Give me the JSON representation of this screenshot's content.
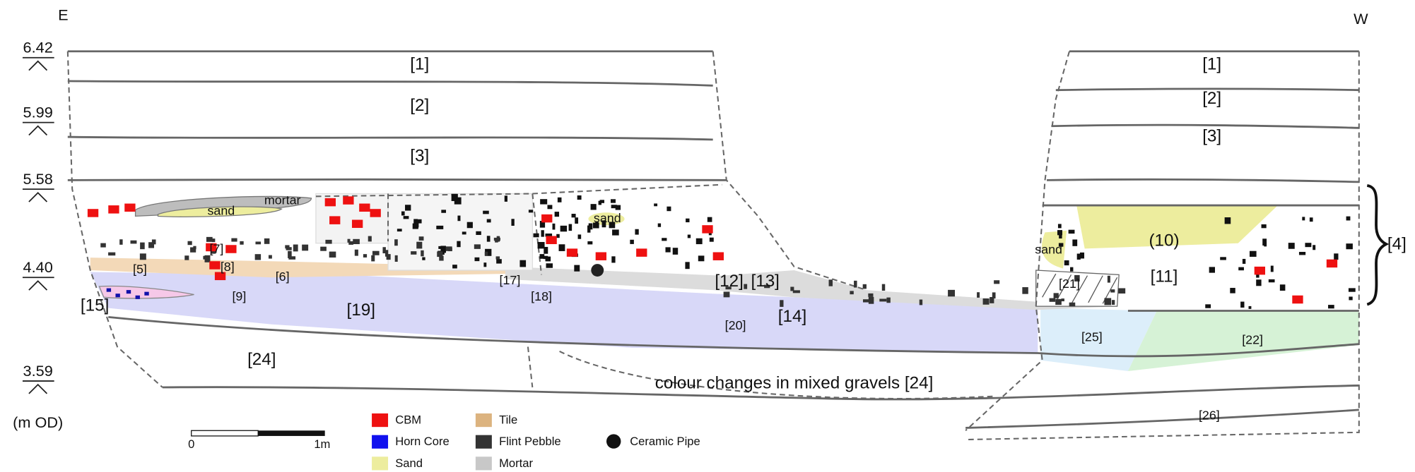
{
  "orientation": {
    "left": "E",
    "right": "W"
  },
  "levels": [
    "6.42",
    "5.99",
    "5.58",
    "4.40",
    "3.59"
  ],
  "unit": "(m OD)",
  "contexts": [
    "[1]",
    "[2]",
    "[3]",
    "[1]",
    "[2]",
    "[3]",
    "[4]",
    "(10)",
    "[11]",
    "[5]",
    "[7]",
    "[8]",
    "[9]",
    "[6]",
    "[15]",
    "[19]",
    "[17]",
    "[18]",
    "[12]",
    "[13]",
    "[14]",
    "[20]",
    "[21]",
    "[25]",
    "[22]",
    "[24]",
    "[26]"
  ],
  "materials": [
    "sand",
    "mortar",
    "sand",
    "sand"
  ],
  "note": "colour changes in mixed gravels [24]",
  "scale": {
    "start": "0",
    "end": "1m"
  },
  "legend": [
    "CBM",
    "Horn Core",
    "Sand",
    "Tile",
    "Flint Pebble",
    "Mortar",
    "Ceramic Pipe"
  ]
}
